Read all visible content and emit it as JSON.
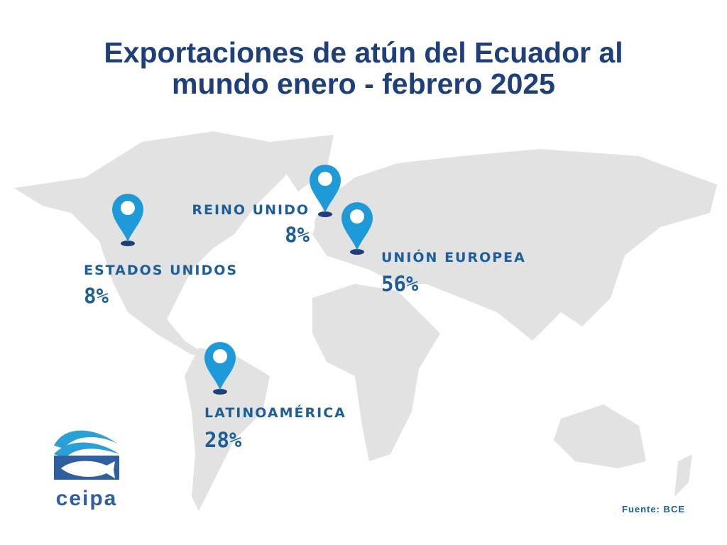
{
  "title": "Exportaciones de atún del Ecuador al mundo enero - febrero 2025",
  "markets": [
    {
      "label": "ESTADOS UNIDOS",
      "share": "8%"
    },
    {
      "label": "REINO UNIDO",
      "share": "8%"
    },
    {
      "label": "UNIÓN EUROPEA",
      "share": "56%"
    },
    {
      "label": "LATINOAMÉRICA",
      "share": "28%"
    }
  ],
  "logo": {
    "text": "ceipa"
  },
  "source": "Fuente: BCE"
}
